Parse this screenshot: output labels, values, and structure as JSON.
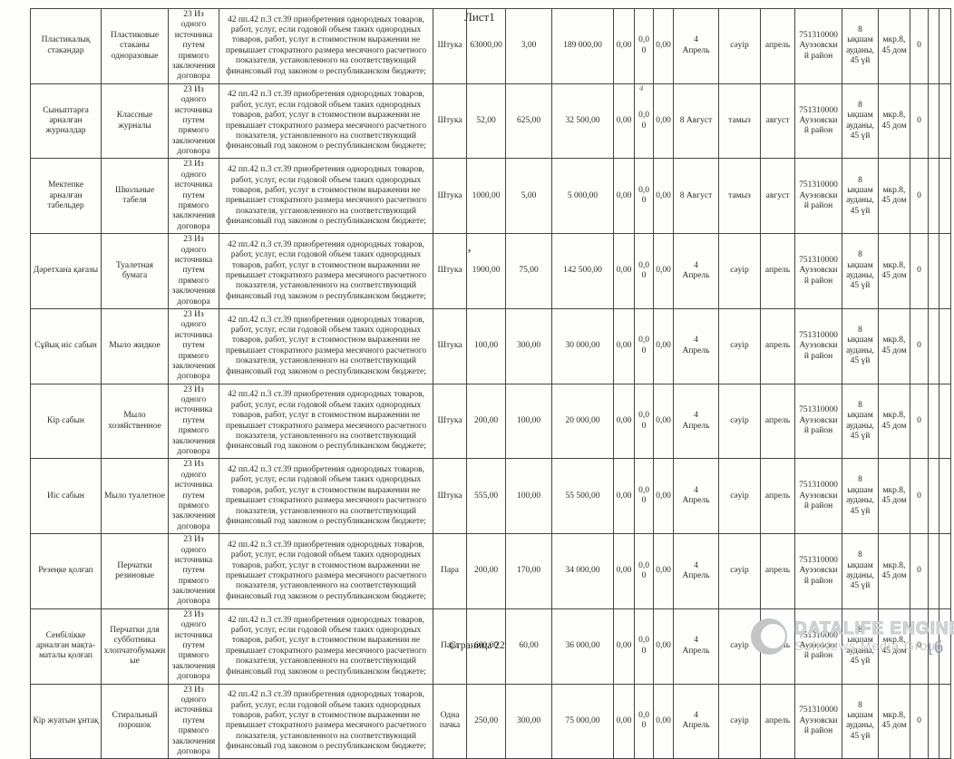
{
  "page": {
    "sheet_label": "Лист1",
    "footer": "Страница 22",
    "watermark": {
      "brand": "DataLife Engine",
      "subtitle": "SoftNews Media Group",
      "handwritten_number": "16"
    }
  },
  "artifacts": {
    "mark_row2": "4",
    "mark_row4": ","
  },
  "shared": {
    "method": "23 Из одного источника путем прямого заключения договора",
    "justification": "42 пп.42 п.3 ст.39 приобретения однородных товаров, работ, услуг, если годовой объем таких однородных товаров, работ, услуг в стоимостном выражении не превышает стократного размера месячного расчетного показателя, установленного на соответствующий финансовый год законом о республиканском бюджете;"
  },
  "table": {
    "rows": [
      {
        "kz": "Пластикалық стакандар",
        "ru": "Пластиковые стаканы одноразовые",
        "unit": "Штука",
        "qty": "63000,00",
        "price": "3,00",
        "total": "189 000,00",
        "z1": "0,00",
        "z2": "0,00",
        "z3": "0,00",
        "month": "4\nАпрель",
        "mkz": "сәуір",
        "mru": "апрель",
        "region": "751310000 Ауэзовский район",
        "akz": "8 ықшам ауданы, 45 үй",
        "aru": "мкр.8, 45 дом",
        "flag": "0",
        "e1": "",
        "e2": ""
      },
      {
        "kz": "Сыныптарға арналған журналдар",
        "ru": "Классные журналы",
        "unit": "Штука",
        "qty": "52,00",
        "price": "625,00",
        "total": "32 500,00",
        "z1": "0,00",
        "z2": "0,00",
        "z3": "0,00",
        "month": "8 Август",
        "mkz": "тамыз",
        "mru": "август",
        "region": "751310000 Ауэзовский район",
        "akz": "8 ықшам ауданы, 45 үй",
        "aru": "мкр.8, 45 дом",
        "flag": "0",
        "e1": "",
        "e2": ""
      },
      {
        "kz": "Мектепке арналған табельдер",
        "ru": "Школьные табеля",
        "unit": "Штука",
        "qty": "1000,00",
        "price": "5,00",
        "total": "5 000,00",
        "z1": "0,00",
        "z2": "0,00",
        "z3": "0,00",
        "month": "8 Август",
        "mkz": "тамыз",
        "mru": "август",
        "region": "751310000 Ауэзовский район",
        "akz": "8 ықшам ауданы, 45 үй",
        "aru": "мкр.8, 45 дом",
        "flag": "0",
        "e1": "",
        "e2": ""
      },
      {
        "kz": "Дәретхана қағазы",
        "ru": "Туалетная бумага",
        "unit": "Штука",
        "qty": "1900,00",
        "price": "75,00",
        "total": "142 500,00",
        "z1": "0,00",
        "z2": "0,00",
        "z3": "0,00",
        "month": "4\nАпрель",
        "mkz": "сәуір",
        "mru": "апрель",
        "region": "751310000 Ауэзовский район",
        "akz": "8 ықшам ауданы, 45 үй",
        "aru": "мкр.8, 45 дом",
        "flag": "0",
        "e1": "",
        "e2": ""
      },
      {
        "kz": "Сұйық иіс сабын",
        "ru": "Мыло жидкое",
        "unit": "Штука",
        "qty": "100,00",
        "price": "300,00",
        "total": "30 000,00",
        "z1": "0,00",
        "z2": "0,00",
        "z3": "0,00",
        "month": "4\nАпрель",
        "mkz": "сәуір",
        "mru": "апрель",
        "region": "751310000 Ауэзовский район",
        "akz": "8 ықшам ауданы, 45 үй",
        "aru": "мкр.8, 45 дом",
        "flag": "0",
        "e1": "",
        "e2": ""
      },
      {
        "kz": "Кір сабын",
        "ru": "Мыло хозяйственное",
        "unit": "Штука",
        "qty": "200,00",
        "price": "100,00",
        "total": "20 000,00",
        "z1": "0,00",
        "z2": "0,00",
        "z3": "0,00",
        "month": "4\nАпрель",
        "mkz": "сәуір",
        "mru": "апрель",
        "region": "751310000 Ауэзовский район",
        "akz": "8 ықшам ауданы, 45 үй",
        "aru": "мкр.8, 45 дом",
        "flag": "0",
        "e1": "",
        "e2": ""
      },
      {
        "kz": "Иіс сабын",
        "ru": "Мыло туалетное",
        "unit": "Штука",
        "qty": "555,00",
        "price": "100,00",
        "total": "55 500,00",
        "z1": "0,00",
        "z2": "0,00",
        "z3": "0,00",
        "month": "4\nАпрель",
        "mkz": "сәуір",
        "mru": "апрель",
        "region": "751310000 Ауэзовский район",
        "akz": "8 ықшам ауданы, 45 үй",
        "aru": "мкр.8, 45 дом",
        "flag": "0",
        "e1": "",
        "e2": ""
      },
      {
        "kz": "Резеңке қолғап",
        "ru": "Перчатки резиновые",
        "unit": "Пара",
        "qty": "200,00",
        "price": "170,00",
        "total": "34 000,00",
        "z1": "0,00",
        "z2": "0,00",
        "z3": "0,00",
        "month": "4\nАпрель",
        "mkz": "сәуір",
        "mru": "апрель",
        "region": "751310000 Ауэзовский район",
        "akz": "8 ықшам ауданы, 45 үй",
        "aru": "мкр.8, 45 дом",
        "flag": "0",
        "e1": "",
        "e2": ""
      },
      {
        "kz": "Сенбілікке арналған мақта-маталы қолғап",
        "ru": "Перчатки для субботника хлопчатобумажные",
        "unit": "Пара",
        "qty": "600,00",
        "price": "60,00",
        "total": "36 000,00",
        "z1": "0,00",
        "z2": "0,00",
        "z3": "0,00",
        "month": "4\nАпрель",
        "mkz": "сәуір",
        "mru": "апрель",
        "region": "751310000 Ауэзовский район",
        "akz": "8 ықшам ауданы, 45 үй",
        "aru": "мкр.8, 45 дом",
        "flag": "0",
        "e1": "",
        "e2": ""
      },
      {
        "kz": "Кір жуатын ұнтақ",
        "ru": "Стиральный порошок",
        "unit": "Одна пачка",
        "qty": "250,00",
        "price": "300,00",
        "total": "75 000,00",
        "z1": "0,00",
        "z2": "0,00",
        "z3": "0,00",
        "month": "4\nАпрель",
        "mkz": "сәуір",
        "mru": "апрель",
        "region": "751310000 Ауэзовский район",
        "akz": "8 ықшам ауданы, 45 үй",
        "aru": "мкр.8, 45 дом",
        "flag": "0",
        "e1": "",
        "e2": ""
      }
    ]
  }
}
